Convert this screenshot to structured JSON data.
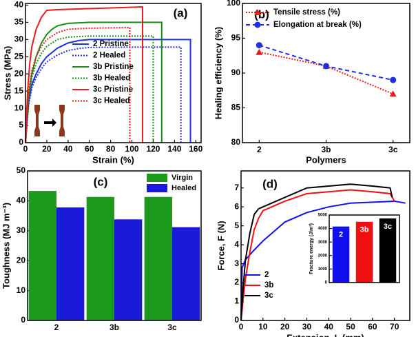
{
  "chart_data": [
    {
      "type": "line",
      "title": "(a)",
      "xlabel": "Strain (%)",
      "ylabel": "Stress (MPa)",
      "xlim": [
        0,
        165
      ],
      "xticks": [
        0,
        20,
        40,
        60,
        80,
        100,
        120,
        140,
        160
      ],
      "ylim": [
        0,
        40.5
      ],
      "yticks": [
        0,
        5,
        10,
        15,
        20,
        25,
        30,
        35,
        40
      ],
      "series": [
        {
          "name": "2 Pristine",
          "color": "#1f2fe0",
          "style": "solid",
          "x": [
            0,
            3,
            6,
            10,
            15,
            20,
            30,
            40,
            50,
            60,
            100,
            155,
            155
          ],
          "values": [
            0,
            12,
            17,
            20,
            23,
            25,
            27.5,
            29,
            29.7,
            30,
            30,
            30,
            0
          ]
        },
        {
          "name": "2 Healed",
          "color": "#1f2fe0",
          "style": "dotted",
          "x": [
            0,
            3,
            6,
            10,
            15,
            20,
            30,
            40,
            50,
            60,
            100,
            146,
            146
          ],
          "values": [
            0,
            11,
            16,
            19,
            21.5,
            23.5,
            25.5,
            26.8,
            27.4,
            27.7,
            27.8,
            27.8,
            0
          ]
        },
        {
          "name": "3b Pristine",
          "color": "#1a8c1a",
          "style": "solid",
          "x": [
            0,
            3,
            6,
            10,
            15,
            20,
            25,
            30,
            40,
            60,
            100,
            128,
            128
          ],
          "values": [
            0,
            14,
            20,
            25,
            29,
            31.5,
            33,
            34,
            34.7,
            35,
            35,
            35,
            0
          ]
        },
        {
          "name": "3b Healed",
          "color": "#1a8c1a",
          "style": "dotted",
          "x": [
            0,
            3,
            6,
            10,
            15,
            20,
            30,
            40,
            60,
            100,
            120,
            120
          ],
          "values": [
            0,
            13,
            19,
            23,
            26,
            28,
            30,
            30.7,
            31,
            31,
            31,
            0
          ]
        },
        {
          "name": "3c Pristine",
          "color": "#e81c1c",
          "style": "solid",
          "x": [
            0,
            2,
            4,
            6,
            10,
            15,
            20,
            30,
            60,
            110,
            110
          ],
          "values": [
            0,
            15,
            23,
            28,
            33,
            36.5,
            38.5,
            38.7,
            39,
            39.5,
            0
          ]
        },
        {
          "name": "3c Healed",
          "color": "#e81c1c",
          "style": "dotted",
          "x": [
            0,
            3,
            6,
            10,
            15,
            20,
            30,
            40,
            60,
            98,
            98
          ],
          "values": [
            0,
            15,
            21,
            25,
            28,
            30,
            32,
            33,
            33.3,
            33.5,
            0
          ]
        }
      ]
    },
    {
      "type": "line",
      "title": "(b)",
      "xlabel": "Polymers",
      "ylabel": "Healing efficiency (%)",
      "categories": [
        "2",
        "3b",
        "3c"
      ],
      "ylim": [
        80,
        100
      ],
      "yticks": [
        80,
        85,
        90,
        95,
        100
      ],
      "series": [
        {
          "name": "Tensile stress (%)",
          "color": "#e81c1c",
          "style": "dotted",
          "marker": "triangle",
          "values": [
            93,
            91,
            87
          ]
        },
        {
          "name": "Elongation at break (%)",
          "color": "#1f2fe0",
          "style": "dashed",
          "marker": "circle",
          "values": [
            94,
            91,
            89
          ]
        }
      ]
    },
    {
      "type": "bar",
      "title": "(c)",
      "ylabel": "Toughness (MJ m⁻³)",
      "categories": [
        "2",
        "3b",
        "3c"
      ],
      "ylim": [
        0,
        50
      ],
      "yticks": [
        0,
        10,
        20,
        30,
        40,
        50
      ],
      "series": [
        {
          "name": "Virgin",
          "color": "#1c9a1c",
          "values": [
            43.3,
            41.3,
            41.3
          ]
        },
        {
          "name": "Healed",
          "color": "#1a1ad8",
          "values": [
            37.8,
            33.8,
            31.2
          ]
        }
      ]
    },
    {
      "type": "line",
      "title": "(d)",
      "xlabel": "Extension, L (mm)",
      "ylabel": "Force, F (N)",
      "xlim": [
        0,
        77
      ],
      "xticks": [
        0,
        10,
        20,
        30,
        40,
        50,
        60,
        70
      ],
      "ylim": [
        0,
        7.9
      ],
      "yticks": [
        0,
        1,
        2,
        3,
        4,
        5,
        6,
        7
      ],
      "series": [
        {
          "name": "2",
          "color": "#1010ee",
          "style": "solid",
          "x": [
            0,
            0.5,
            2,
            5,
            10,
            15,
            20,
            30,
            40,
            50,
            60,
            70,
            75
          ],
          "values": [
            0,
            2.8,
            3.2,
            3.6,
            4.2,
            4.7,
            5.2,
            5.7,
            6.0,
            6.2,
            6.25,
            6.3,
            6.2
          ]
        },
        {
          "name": "3b",
          "color": "#ee1010",
          "style": "solid",
          "x": [
            0,
            1,
            2,
            4,
            6,
            8,
            10,
            20,
            30,
            40,
            50,
            60,
            68,
            70
          ],
          "values": [
            0,
            1.2,
            2.2,
            3.6,
            4.8,
            5.4,
            5.8,
            6.3,
            6.7,
            6.8,
            6.9,
            6.8,
            6.7,
            6.3
          ]
        },
        {
          "name": "3c",
          "color": "#000000",
          "style": "solid",
          "x": [
            0,
            1,
            2,
            4,
            6,
            8,
            10,
            20,
            30,
            40,
            50,
            60,
            68,
            69
          ],
          "values": [
            0,
            1.8,
            3.2,
            4.6,
            5.6,
            5.9,
            6.0,
            6.5,
            7.0,
            7.1,
            7.2,
            7.1,
            7.0,
            6.5
          ]
        }
      ]
    },
    {
      "type": "bar",
      "ylabel": "Fracture energy (J/m²)",
      "category_labels": "inside",
      "categories": [
        "2",
        "3b",
        "3c"
      ],
      "colors": [
        "#1010ee",
        "#ee1010",
        "#000000"
      ],
      "values": [
        4150,
        4500,
        4750
      ],
      "ylim": [
        0,
        5000
      ],
      "yticks": [
        0,
        1000,
        2000,
        3000,
        4000,
        5000
      ]
    }
  ]
}
